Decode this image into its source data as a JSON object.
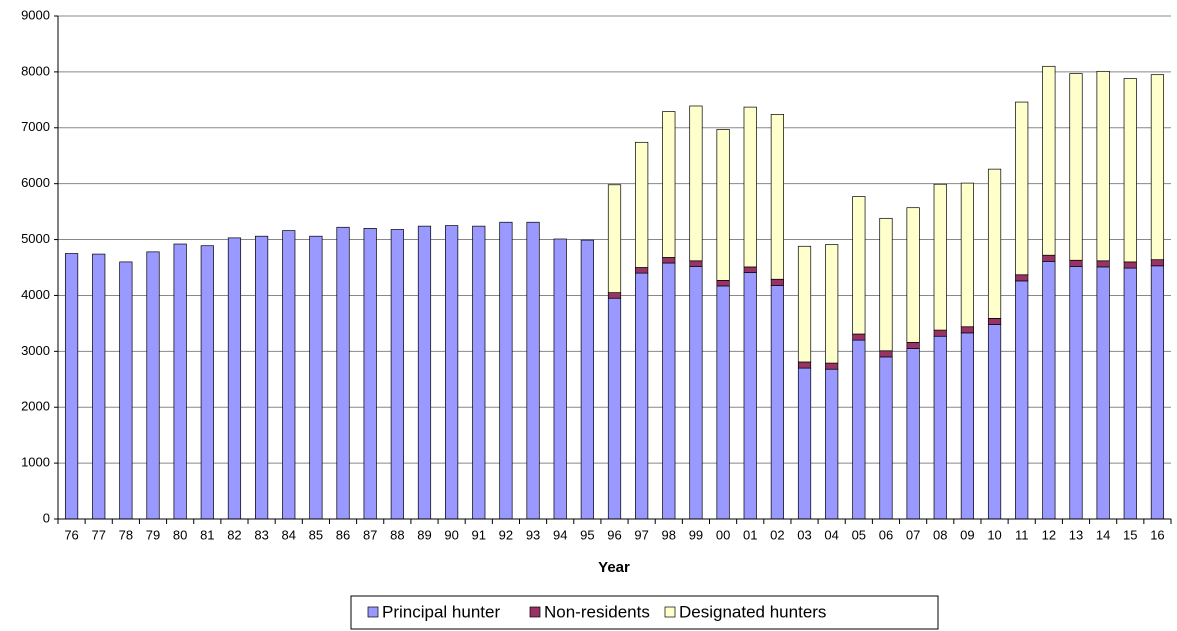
{
  "chart_data": {
    "type": "stacked-bar",
    "x_label": "Year",
    "categories": [
      "76",
      "77",
      "78",
      "79",
      "80",
      "81",
      "82",
      "83",
      "84",
      "85",
      "86",
      "87",
      "88",
      "89",
      "90",
      "91",
      "92",
      "93",
      "94",
      "95",
      "96",
      "97",
      "98",
      "99",
      "00",
      "01",
      "02",
      "03",
      "04",
      "05",
      "06",
      "07",
      "08",
      "09",
      "10",
      "11",
      "12",
      "13",
      "14",
      "15",
      "16"
    ],
    "series": [
      {
        "name": "Principal hunter",
        "color": "#9999ff",
        "values": [
          4750,
          4740,
          4600,
          4780,
          4920,
          4890,
          5030,
          5060,
          5160,
          5060,
          5220,
          5200,
          5180,
          5240,
          5250,
          5240,
          5310,
          5310,
          5010,
          4990,
          3950,
          4400,
          4580,
          4520,
          4170,
          4410,
          4180,
          2700,
          2680,
          3200,
          2900,
          3050,
          3270,
          3330,
          3480,
          4260,
          4610,
          4520,
          4510,
          4490,
          4530
        ]
      },
      {
        "name": "Non-residents",
        "color": "#993366",
        "values": [
          null,
          null,
          null,
          null,
          null,
          null,
          null,
          null,
          null,
          null,
          null,
          null,
          null,
          null,
          null,
          null,
          null,
          null,
          null,
          null,
          100,
          100,
          100,
          100,
          100,
          100,
          110,
          110,
          110,
          110,
          110,
          110,
          110,
          110,
          110,
          110,
          110,
          110,
          110,
          110,
          110
        ]
      },
      {
        "name": "Designated hunters",
        "color": "#ffffcc",
        "values": [
          null,
          null,
          null,
          null,
          null,
          null,
          null,
          null,
          null,
          null,
          null,
          null,
          null,
          null,
          null,
          null,
          null,
          null,
          null,
          null,
          1930,
          2240,
          2610,
          2770,
          2700,
          2860,
          2950,
          2070,
          2120,
          2460,
          2370,
          2410,
          2610,
          2570,
          2670,
          3090,
          3380,
          3340,
          3390,
          3280,
          3310
        ]
      }
    ],
    "ylim": [
      0,
      9000
    ],
    "yticks": [
      0,
      1000,
      2000,
      3000,
      4000,
      5000,
      6000,
      7000,
      8000,
      9000
    ],
    "grid": true,
    "legend": "bottom"
  }
}
